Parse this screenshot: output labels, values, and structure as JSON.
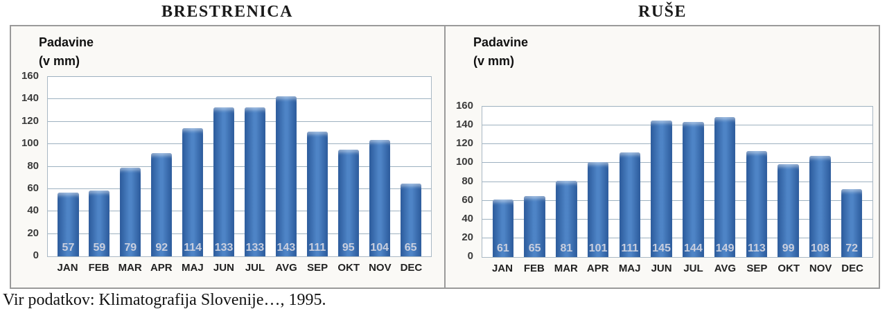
{
  "source": "Vir podatkov: Klimatografija Slovenije…, 1995.",
  "colors": {
    "bar_edge": "#2b5a9b",
    "bar_center": "#4e84c6",
    "value_label": "#c8cede",
    "gridline": "#9db1c0",
    "plot_border": "#a9b8c4",
    "panel_border": "#9a9a9a",
    "panel_bg": "#faf9f6"
  },
  "chart_data": [
    {
      "type": "bar",
      "title": "BRESTRENICA",
      "ylabel_line1": "Padavine",
      "ylabel_line2": "(v mm)",
      "categories": [
        "JAN",
        "FEB",
        "MAR",
        "APR",
        "MAJ",
        "JUN",
        "JUL",
        "AVG",
        "SEP",
        "OKT",
        "NOV",
        "DEC"
      ],
      "values": [
        57,
        59,
        79,
        92,
        114,
        133,
        133,
        143,
        111,
        95,
        104,
        65
      ],
      "ylim": [
        0,
        160
      ],
      "ytick_step": 20,
      "grid": true,
      "legend": "none",
      "value_labels": "inside-base"
    },
    {
      "type": "bar",
      "title": "RUŠE",
      "ylabel_line1": "Padavine",
      "ylabel_line2": "(v mm)",
      "categories": [
        "JAN",
        "FEB",
        "MAR",
        "APR",
        "MAJ",
        "JUN",
        "JUL",
        "AVG",
        "SEP",
        "OKT",
        "NOV",
        "DEC"
      ],
      "values": [
        61,
        65,
        81,
        101,
        111,
        145,
        144,
        149,
        113,
        99,
        108,
        72
      ],
      "ylim": [
        0,
        160
      ],
      "ytick_step": 20,
      "grid": true,
      "legend": "none",
      "value_labels": "inside-base"
    }
  ]
}
